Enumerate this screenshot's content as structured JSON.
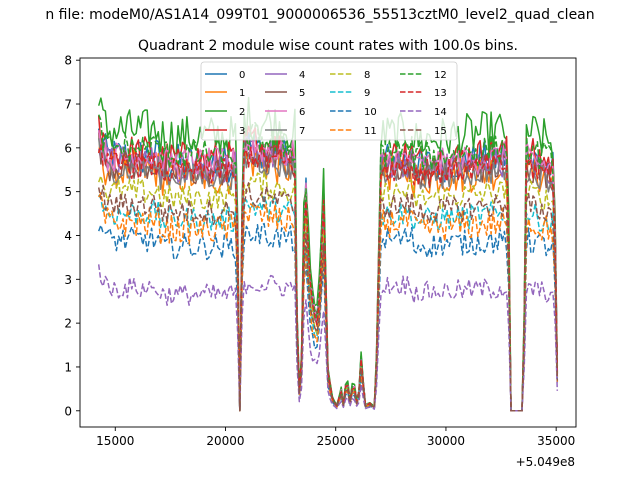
{
  "chart_data": {
    "type": "line",
    "suptitle": "n file: modeM0/AS1A14_099T01_9000006536_55513cztM0_level2_quad_clean",
    "title": "Quadrant 2 module wise count rates with 100.0s bins.",
    "xlabel": "",
    "ylabel": "",
    "x_offset_label": "+5.049e8",
    "xlim": [
      13400,
      35900
    ],
    "ylim": [
      -0.37,
      8.05
    ],
    "xticks": [
      15000,
      20000,
      25000,
      30000,
      35000
    ],
    "xtick_labels": [
      "15000",
      "20000",
      "25000",
      "30000",
      "35000"
    ],
    "yticks": [
      0,
      1,
      2,
      3,
      4,
      5,
      6,
      7,
      8
    ],
    "ytick_labels": [
      "0",
      "1",
      "2",
      "3",
      "4",
      "5",
      "6",
      "7",
      "8"
    ],
    "legend_position": "upper center",
    "legend_columns": 4,
    "profile": {
      "bin_seconds": 100,
      "x_start": 14250,
      "x_end": 35050,
      "gap_segments": [
        [
          14250,
          1.0
        ],
        [
          20500,
          1.0
        ],
        [
          20650,
          0.0
        ],
        [
          20800,
          1.05
        ],
        [
          23150,
          1.0
        ],
        [
          23300,
          0.02
        ],
        [
          23450,
          0.2
        ],
        [
          23600,
          0.95
        ],
        [
          23800,
          0.55
        ],
        [
          24000,
          0.4
        ],
        [
          24200,
          0.35
        ],
        [
          24450,
          0.85
        ],
        [
          24650,
          0.15
        ],
        [
          24850,
          0.05
        ],
        [
          25050,
          0.02
        ],
        [
          25250,
          0.08
        ],
        [
          25400,
          0.0
        ],
        [
          25500,
          0.2
        ],
        [
          25600,
          0.01
        ],
        [
          25800,
          0.12
        ],
        [
          26000,
          0.01
        ],
        [
          26150,
          0.2
        ],
        [
          26350,
          0.02
        ],
        [
          26550,
          0.03
        ],
        [
          26800,
          0.01
        ],
        [
          27050,
          0.95
        ],
        [
          32800,
          1.0
        ],
        [
          32950,
          0.0
        ],
        [
          33500,
          0.0
        ],
        [
          33650,
          1.0
        ],
        [
          34900,
          0.95
        ],
        [
          35050,
          0.15
        ]
      ]
    },
    "series": [
      {
        "name": "0",
        "color": "#1f77b4",
        "style": "solid",
        "base": 5.8,
        "noise": 0.45
      },
      {
        "name": "1",
        "color": "#ff7f0e",
        "style": "solid",
        "base": 5.5,
        "noise": 0.45
      },
      {
        "name": "2",
        "color": "#2ca02c",
        "style": "solid",
        "base": 6.4,
        "noise": 0.5
      },
      {
        "name": "3",
        "color": "#d62728",
        "style": "solid",
        "base": 5.9,
        "noise": 0.4
      },
      {
        "name": "4",
        "color": "#9467bd",
        "style": "solid",
        "base": 5.7,
        "noise": 0.35
      },
      {
        "name": "5",
        "color": "#8c564b",
        "style": "solid",
        "base": 5.6,
        "noise": 0.35
      },
      {
        "name": "6",
        "color": "#e377c2",
        "style": "solid",
        "base": 5.8,
        "noise": 0.35
      },
      {
        "name": "7",
        "color": "#7f7f7f",
        "style": "solid",
        "base": 5.5,
        "noise": 0.3
      },
      {
        "name": "8",
        "color": "#bcbd22",
        "style": "dashed",
        "base": 5.0,
        "noise": 0.3
      },
      {
        "name": "9",
        "color": "#17becf",
        "style": "dashed",
        "base": 4.5,
        "noise": 0.3
      },
      {
        "name": "10",
        "color": "#1f77b4",
        "style": "dashed",
        "base": 3.9,
        "noise": 0.3
      },
      {
        "name": "11",
        "color": "#ff7f0e",
        "style": "dashed",
        "base": 4.3,
        "noise": 0.35
      },
      {
        "name": "12",
        "color": "#2ca02c",
        "style": "dashed",
        "base": 6.0,
        "noise": 0.35
      },
      {
        "name": "13",
        "color": "#d62728",
        "style": "dashed",
        "base": 5.6,
        "noise": 0.3
      },
      {
        "name": "14",
        "color": "#9467bd",
        "style": "dashed",
        "base": 2.8,
        "noise": 0.25
      },
      {
        "name": "15",
        "color": "#8c564b",
        "style": "dashed",
        "base": 4.7,
        "noise": 0.3
      }
    ]
  }
}
